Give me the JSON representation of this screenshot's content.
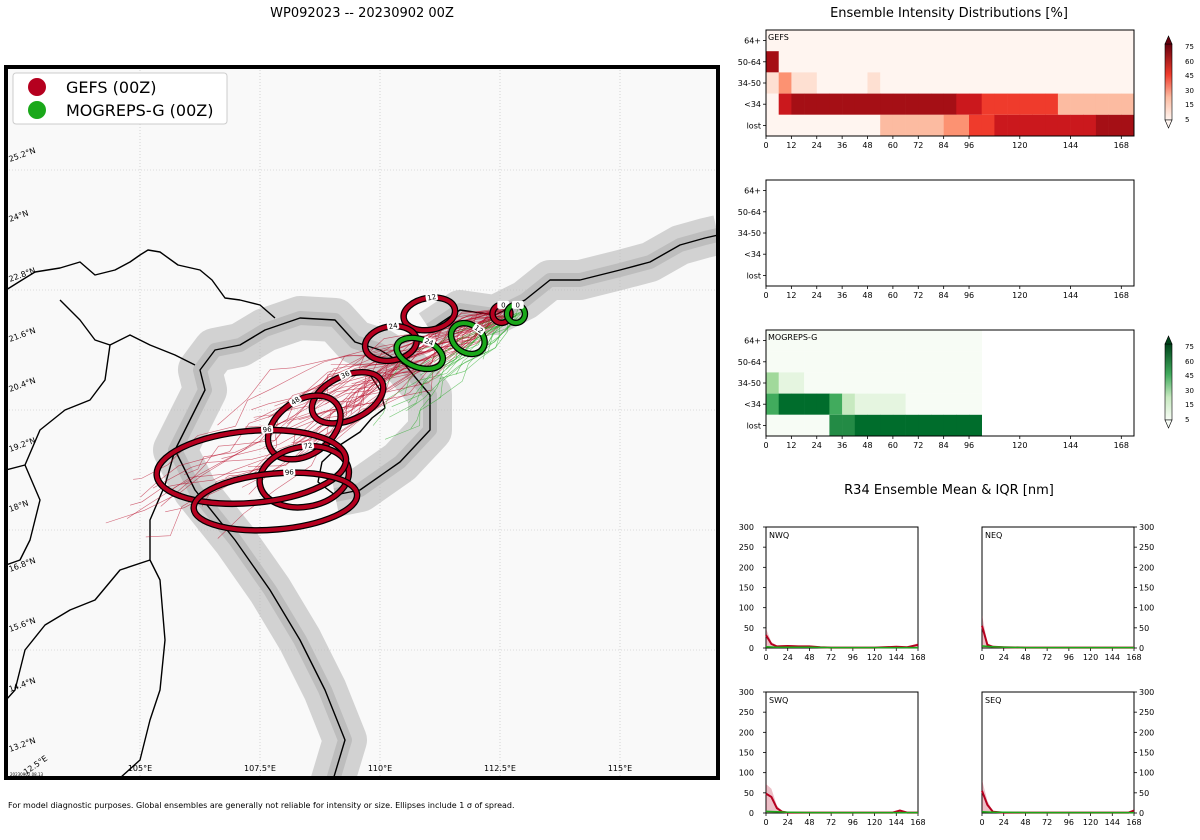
{
  "title": "WP092023 -- 20230902 00Z",
  "footnote": "For model diagnostic purposes. Global ensembles are generally not reliable for intensity or size. Ellipses include 1 σ of spread.",
  "map_stamp": "20230902.08.13",
  "colors": {
    "gefs": "#b5001f",
    "mogreps": "#1aa81a"
  },
  "chart_data": [
    {
      "type": "scatter",
      "id": "track-map",
      "title": "WP092023 -- 20230902 00Z",
      "legend": [
        {
          "name": "GEFS (00Z)",
          "color": "#b5001f"
        },
        {
          "name": "MOGREPS-G (00Z)",
          "color": "#1aa81a"
        }
      ],
      "legend_position": "top-left",
      "lon_ticks": [
        "105°E",
        "107.5°E",
        "110°E",
        "112.5°E",
        "115°E"
      ],
      "lat_ticks": [
        "25.2°N",
        "24°N",
        "22.8°N",
        "21.6°N",
        "20.4°N",
        "19.2°N",
        "18°N",
        "16.8°N",
        "15.6°N",
        "14.4°N",
        "13.2°N",
        "12.5°E"
      ],
      "xlim": [
        102.2,
        117.0
      ],
      "ylim": [
        12.4,
        26.8
      ],
      "grid": true,
      "gefs_ellipses": [
        {
          "hour": "0",
          "lon": 112.5,
          "lat": 21.8
        },
        {
          "hour": "12",
          "lon": 111.0,
          "lat": 21.8
        },
        {
          "hour": "24",
          "lon": 110.2,
          "lat": 21.2
        },
        {
          "hour": "36",
          "lon": 109.3,
          "lat": 20.1
        },
        {
          "hour": "48",
          "lon": 108.4,
          "lat": 19.5
        },
        {
          "hour": "72",
          "lon": 108.4,
          "lat": 18.5
        },
        {
          "hour": "96",
          "lon": 107.3,
          "lat": 18.7
        },
        {
          "hour": "96",
          "lon": 107.8,
          "lat": 18.0
        }
      ],
      "mogreps_ellipses": [
        {
          "hour": "0",
          "lon": 112.8,
          "lat": 21.8
        },
        {
          "hour": "12",
          "lon": 111.8,
          "lat": 21.3
        },
        {
          "hour": "24",
          "lon": 110.8,
          "lat": 21.0
        }
      ]
    },
    {
      "type": "heatmap",
      "id": "gefs-intensity",
      "title": "Ensemble Intensity Distributions [%]",
      "label": "GEFS",
      "rows": [
        "64+",
        "50-64",
        "34-50",
        "<34",
        "lost"
      ],
      "x_ticks": [
        "0",
        "12",
        "24",
        "36",
        "48",
        "60",
        "72",
        "84",
        "96",
        "120",
        "144",
        "168"
      ],
      "colorbar_ticks": [
        "75",
        "60",
        "45",
        "30",
        "15",
        "5"
      ],
      "columns_hours": [
        0,
        6,
        12,
        18,
        24,
        30,
        36,
        42,
        48,
        54,
        60,
        66,
        72,
        78,
        84,
        90,
        96,
        102,
        108,
        114,
        120,
        126,
        132,
        138,
        144,
        150,
        156,
        162,
        168
      ],
      "values": [
        [
          0,
          0,
          0,
          0,
          0,
          0,
          0,
          0,
          0,
          0,
          0,
          0,
          0,
          0,
          0,
          0,
          0,
          0,
          0,
          0,
          0,
          0,
          0,
          0,
          0,
          0,
          0,
          0,
          0
        ],
        [
          90,
          0,
          0,
          0,
          0,
          0,
          0,
          0,
          0,
          0,
          0,
          0,
          0,
          0,
          0,
          0,
          0,
          0,
          0,
          0,
          0,
          0,
          0,
          0,
          0,
          0,
          0,
          0,
          0
        ],
        [
          18,
          45,
          15,
          15,
          0,
          0,
          0,
          0,
          10,
          0,
          0,
          0,
          0,
          0,
          0,
          0,
          0,
          0,
          0,
          0,
          0,
          0,
          0,
          0,
          0,
          0,
          0,
          0,
          0
        ],
        [
          5,
          70,
          95,
          95,
          95,
          95,
          95,
          95,
          95,
          95,
          95,
          95,
          95,
          90,
          90,
          70,
          70,
          50,
          50,
          50,
          50,
          50,
          50,
          25,
          25,
          25,
          25,
          25,
          25
        ],
        [
          0,
          0,
          0,
          0,
          0,
          0,
          0,
          0,
          5,
          20,
          20,
          20,
          20,
          20,
          40,
          45,
          55,
          55,
          70,
          70,
          70,
          70,
          70,
          80,
          80,
          80,
          95,
          95,
          95
        ]
      ]
    },
    {
      "type": "heatmap",
      "id": "empty-intensity",
      "rows": [
        "64+",
        "50-64",
        "34-50",
        "<34",
        "lost"
      ],
      "x_ticks": [
        "0",
        "12",
        "24",
        "36",
        "48",
        "60",
        "72",
        "84",
        "96",
        "120",
        "144",
        "168"
      ],
      "values": []
    },
    {
      "type": "heatmap",
      "id": "mogreps-intensity",
      "label": "MOGREPS-G",
      "rows": [
        "64+",
        "50-64",
        "34-50",
        "<34",
        "lost"
      ],
      "x_ticks": [
        "0",
        "12",
        "24",
        "36",
        "48",
        "60",
        "72",
        "84",
        "96",
        "120",
        "144",
        "168"
      ],
      "colorbar_ticks": [
        "75",
        "60",
        "45",
        "30",
        "15",
        "5"
      ],
      "columns_hours": [
        0,
        6,
        12,
        18,
        24,
        30,
        36,
        42,
        48,
        54,
        60,
        66,
        72,
        78,
        84,
        90,
        96
      ],
      "values": [
        [
          0,
          0,
          0,
          0,
          0,
          0,
          0,
          0,
          0,
          0,
          0,
          0,
          0,
          0,
          0,
          0,
          0
        ],
        [
          0,
          0,
          0,
          0,
          0,
          0,
          0,
          0,
          0,
          0,
          0,
          0,
          0,
          0,
          0,
          0,
          0
        ],
        [
          45,
          12,
          12,
          0,
          0,
          0,
          0,
          0,
          0,
          0,
          0,
          0,
          0,
          0,
          0,
          0,
          0
        ],
        [
          55,
          90,
          90,
          90,
          90,
          50,
          30,
          15,
          15,
          15,
          15,
          0,
          0,
          0,
          0,
          0,
          0
        ],
        [
          0,
          0,
          0,
          8,
          8,
          80,
          80,
          95,
          95,
          95,
          95,
          95,
          95,
          95,
          95,
          95,
          95
        ]
      ]
    },
    {
      "type": "line",
      "id": "r34-nwq",
      "title": "R34 Ensemble Mean & IQR [nm]",
      "label": "NWQ",
      "x_ticks": [
        "0",
        "24",
        "48",
        "72",
        "96",
        "120",
        "144",
        "168"
      ],
      "y_ticks": [
        "300",
        "250",
        "200",
        "150",
        "100",
        "50",
        "0"
      ],
      "xlim": [
        0,
        168
      ],
      "ylim": [
        0,
        300
      ],
      "series": [
        {
          "color": "#b5001f",
          "x": [
            0,
            6,
            12,
            24,
            36,
            48,
            60,
            72,
            96,
            120,
            144,
            156,
            168
          ],
          "y": [
            32,
            10,
            4,
            5,
            4,
            4,
            2,
            1,
            1,
            1,
            3,
            2,
            8
          ]
        },
        {
          "color": "#1aa81a",
          "x": [
            0,
            12,
            24,
            48,
            72,
            96,
            120,
            144,
            168
          ],
          "y": [
            3,
            2,
            2,
            2,
            1,
            1,
            1,
            1,
            1
          ]
        }
      ]
    },
    {
      "type": "line",
      "id": "r34-neq",
      "label": "NEQ",
      "x_ticks": [
        "0",
        "24",
        "48",
        "72",
        "96",
        "120",
        "144",
        "168"
      ],
      "y_ticks": [
        "300",
        "250",
        "200",
        "150",
        "100",
        "50",
        "0"
      ],
      "xlim": [
        0,
        168
      ],
      "ylim": [
        0,
        300
      ],
      "series": [
        {
          "color": "#b5001f",
          "x": [
            0,
            6,
            12,
            24,
            48,
            72,
            96,
            120,
            144,
            168
          ],
          "y": [
            55,
            8,
            3,
            2,
            1,
            1,
            1,
            1,
            1,
            1
          ]
        },
        {
          "color": "#1aa81a",
          "x": [
            0,
            12,
            24,
            48,
            72,
            96,
            120,
            144,
            168
          ],
          "y": [
            5,
            3,
            2,
            1,
            1,
            1,
            1,
            1,
            1
          ]
        }
      ]
    },
    {
      "type": "line",
      "id": "r34-swq",
      "label": "SWQ",
      "x_ticks": [
        "0",
        "24",
        "48",
        "72",
        "96",
        "120",
        "144",
        "168"
      ],
      "y_ticks": [
        "300",
        "250",
        "200",
        "150",
        "100",
        "50",
        "0"
      ],
      "xlim": [
        0,
        168
      ],
      "ylim": [
        0,
        300
      ],
      "series": [
        {
          "color": "#b5001f",
          "x": [
            0,
            6,
            12,
            18,
            24,
            48,
            72,
            96,
            120,
            140,
            148,
            156,
            168
          ],
          "y": [
            48,
            40,
            12,
            3,
            1,
            1,
            1,
            1,
            1,
            1,
            6,
            1,
            1
          ]
        },
        {
          "color": "#1aa81a",
          "x": [
            0,
            12,
            24,
            48,
            72,
            96,
            120,
            144,
            168
          ],
          "y": [
            4,
            3,
            2,
            1,
            1,
            1,
            1,
            1,
            1
          ]
        }
      ]
    },
    {
      "type": "line",
      "id": "r34-seq",
      "label": "SEQ",
      "x_ticks": [
        "0",
        "24",
        "48",
        "72",
        "96",
        "120",
        "144",
        "168"
      ],
      "y_ticks": [
        "300",
        "250",
        "200",
        "150",
        "100",
        "50",
        "0"
      ],
      "xlim": [
        0,
        168
      ],
      "ylim": [
        0,
        300
      ],
      "series": [
        {
          "color": "#b5001f",
          "x": [
            0,
            6,
            12,
            24,
            48,
            72,
            96,
            120,
            144,
            162,
            168
          ],
          "y": [
            55,
            20,
            3,
            1,
            1,
            1,
            1,
            1,
            1,
            1,
            6
          ]
        },
        {
          "color": "#1aa81a",
          "x": [
            0,
            12,
            24,
            48,
            72,
            96,
            120,
            144,
            168
          ],
          "y": [
            3,
            2,
            2,
            1,
            1,
            1,
            1,
            1,
            1
          ]
        }
      ]
    }
  ]
}
